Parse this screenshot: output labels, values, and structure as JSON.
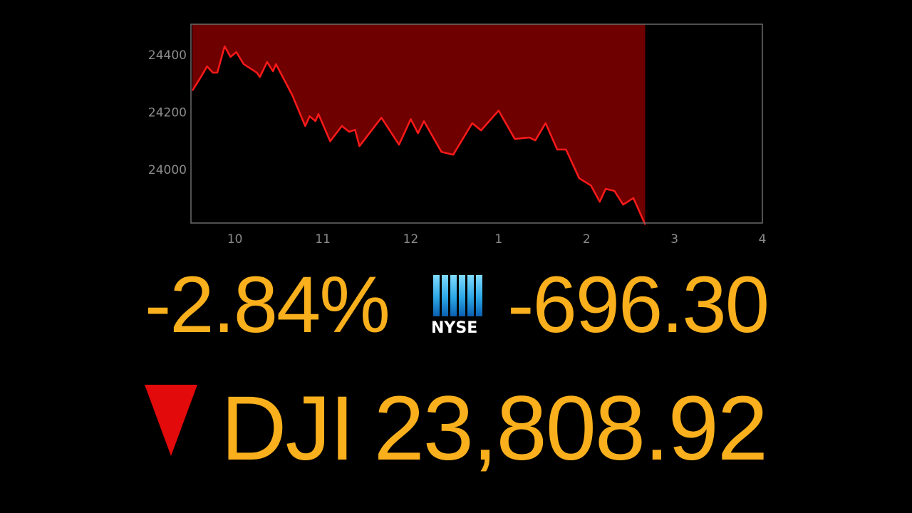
{
  "chart_data": {
    "type": "area",
    "x_unit": "time of day",
    "xlim": [
      "09:30",
      "16:00"
    ],
    "ylim": [
      23814,
      24507
    ],
    "x_ticks": [
      {
        "t": "10:00",
        "label": "10"
      },
      {
        "t": "11:00",
        "label": "11"
      },
      {
        "t": "12:00",
        "label": "12"
      },
      {
        "t": "13:00",
        "label": "1"
      },
      {
        "t": "14:00",
        "label": "2"
      },
      {
        "t": "15:00",
        "label": "3"
      },
      {
        "t": "16:00",
        "label": "4"
      }
    ],
    "y_ticks": [
      {
        "v": 24000,
        "label": "24000"
      },
      {
        "v": 24200,
        "label": "24200"
      },
      {
        "v": 24400,
        "label": "24400"
      }
    ],
    "grid": false,
    "line_color": "#ff1a1a",
    "fill_color": "#6e0000",
    "points": [
      [
        "09:31",
        24276
      ],
      [
        "09:37",
        24325
      ],
      [
        "09:41",
        24360
      ],
      [
        "09:45",
        24338
      ],
      [
        "09:48",
        24338
      ],
      [
        "09:53",
        24430
      ],
      [
        "09:57",
        24393
      ],
      [
        "10:01",
        24410
      ],
      [
        "10:06",
        24368
      ],
      [
        "10:15",
        24338
      ],
      [
        "10:17",
        24323
      ],
      [
        "10:22",
        24375
      ],
      [
        "10:26",
        24343
      ],
      [
        "10:28",
        24368
      ],
      [
        "10:39",
        24261
      ],
      [
        "10:48",
        24152
      ],
      [
        "10:51",
        24186
      ],
      [
        "10:55",
        24169
      ],
      [
        "10:57",
        24194
      ],
      [
        "11:05",
        24099
      ],
      [
        "11:13",
        24152
      ],
      [
        "11:18",
        24132
      ],
      [
        "11:22",
        24139
      ],
      [
        "11:25",
        24082
      ],
      [
        "11:40",
        24181
      ],
      [
        "11:52",
        24087
      ],
      [
        "12:00",
        24176
      ],
      [
        "12:05",
        24127
      ],
      [
        "12:09",
        24169
      ],
      [
        "12:21",
        24062
      ],
      [
        "12:29",
        24052
      ],
      [
        "12:42",
        24162
      ],
      [
        "12:48",
        24137
      ],
      [
        "13:00",
        24206
      ],
      [
        "13:11",
        24107
      ],
      [
        "13:21",
        24112
      ],
      [
        "13:25",
        24102
      ],
      [
        "13:32",
        24162
      ],
      [
        "13:40",
        24070
      ],
      [
        "13:46",
        24070
      ],
      [
        "13:55",
        23970
      ],
      [
        "14:03",
        23945
      ],
      [
        "14:09",
        23888
      ],
      [
        "14:13",
        23933
      ],
      [
        "14:19",
        23926
      ],
      [
        "14:25",
        23878
      ],
      [
        "14:32",
        23901
      ],
      [
        "14:40",
        23809
      ]
    ]
  },
  "quote": {
    "percent_change": "-2.84%",
    "point_change": "-696.30",
    "symbol": "DJI",
    "price": "23,808.92",
    "direction": "down",
    "direction_icon": "down-triangle-icon",
    "text_color": "#f9b01c",
    "down_color": "#e20a0a"
  },
  "logo": {
    "exchange": "NYSE"
  }
}
